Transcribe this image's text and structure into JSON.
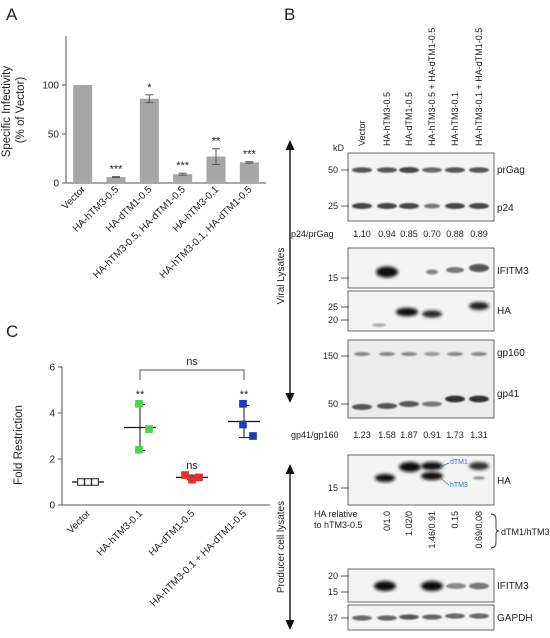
{
  "panels": {
    "A": "A",
    "B": "B",
    "C": "C"
  },
  "chart_data": [
    {
      "type": "bar",
      "panel": "A",
      "ylabel": "Specific Infectivity\n(% of Vector)",
      "ylim": [
        0,
        150
      ],
      "yticks": [
        0,
        50,
        100
      ],
      "categories": [
        "Vector",
        "HA-hTM3-0.5",
        "HA-dTM1-0.5",
        "HA-hTM3-0.5, HA-dTM1-0.5",
        "HA-hTM3-0.1",
        "HA-hTM3-0.1, HA-dTM1-0.5"
      ],
      "values": [
        100,
        6,
        86,
        9,
        27,
        21
      ],
      "errors": [
        0,
        0.5,
        4,
        1,
        8,
        0.7
      ],
      "significance": [
        "",
        "***",
        "*",
        "***",
        "**",
        "***"
      ],
      "bar_color": "#a6a6a6",
      "grid": false
    },
    {
      "type": "scatter",
      "panel": "C",
      "ylabel": "Fold Restriction",
      "ylim": [
        0,
        6
      ],
      "yticks": [
        0,
        2,
        4,
        6
      ],
      "categories": [
        "Vector",
        "HA-hTM3-0.1",
        "HA-dTM1-0.5",
        "HA-hTM3-0.1 + HA-dTM1-0.5"
      ],
      "points": [
        [
          1.0,
          1.0,
          1.0
        ],
        [
          4.4,
          2.4,
          3.3
        ],
        [
          1.3,
          1.1,
          1.2
        ],
        [
          4.4,
          3.5,
          3.0
        ]
      ],
      "means": [
        1.0,
        3.37,
        1.2,
        3.63
      ],
      "sds": [
        0.0,
        1.0,
        0.1,
        0.7
      ],
      "colors": [
        "#333333",
        "#4cd44c",
        "#e03030",
        "#1f3fb0"
      ],
      "hollow": [
        true,
        false,
        false,
        false
      ],
      "significance": [
        "",
        "**",
        "ns",
        "**"
      ],
      "comparison": {
        "from": 1,
        "to": 3,
        "label": "ns"
      },
      "grid": false
    }
  ],
  "blot": {
    "lanes": [
      "Vector",
      "HA-hTM3-0.5",
      "HA-dTM1-0.5",
      "HA-hTM3-0.5 + HA-dTM1-0.5",
      "HA-hTM3-0.1",
      "HA-hTM3-0.1 + HA-dTM1-0.5"
    ],
    "kd_label": "kD",
    "viral_label": "Viral Lysates",
    "producer_label": "Producer cell lysates",
    "prgag": {
      "label": "prGag",
      "marker": "50"
    },
    "p24": {
      "label": "p24",
      "marker": "25"
    },
    "p24_ratio_label": "p24/prGag",
    "p24_ratios": [
      "1.10",
      "0.94",
      "0.85",
      "0.70",
      "0.88",
      "0.89"
    ],
    "ifitm3_viral": {
      "label": "IFITM3",
      "marker": "15"
    },
    "ha_viral": {
      "label": "HA",
      "markers": [
        "25",
        "20"
      ]
    },
    "gp160": {
      "label": "gp160",
      "marker": "150"
    },
    "gp41": {
      "label": "gp41",
      "marker": "50"
    },
    "gp_ratio_label": "gp41/gp160",
    "gp_ratios": [
      "1.23",
      "1.58",
      "1.87",
      "0.91",
      "1.73",
      "1.31"
    ],
    "ha_producer": {
      "label": "HA",
      "marker": "15",
      "dtm1_tag": "dTM1",
      "htm3_tag": "hTM3"
    },
    "ha_relative_label_1": "HA relative",
    "ha_relative_label_2": "to hTM3-0.5",
    "ha_relative": [
      "0/1.0",
      "1.02/0",
      "1.46/0.91",
      "0.15",
      "0.69/0.08"
    ],
    "dtm_ratio_label": "dTM1/hTM3",
    "ifitm3_producer": {
      "label": "IFITM3",
      "markers": [
        "20",
        "15"
      ]
    },
    "gapdh": {
      "label": "GAPDH",
      "marker": "37"
    }
  }
}
